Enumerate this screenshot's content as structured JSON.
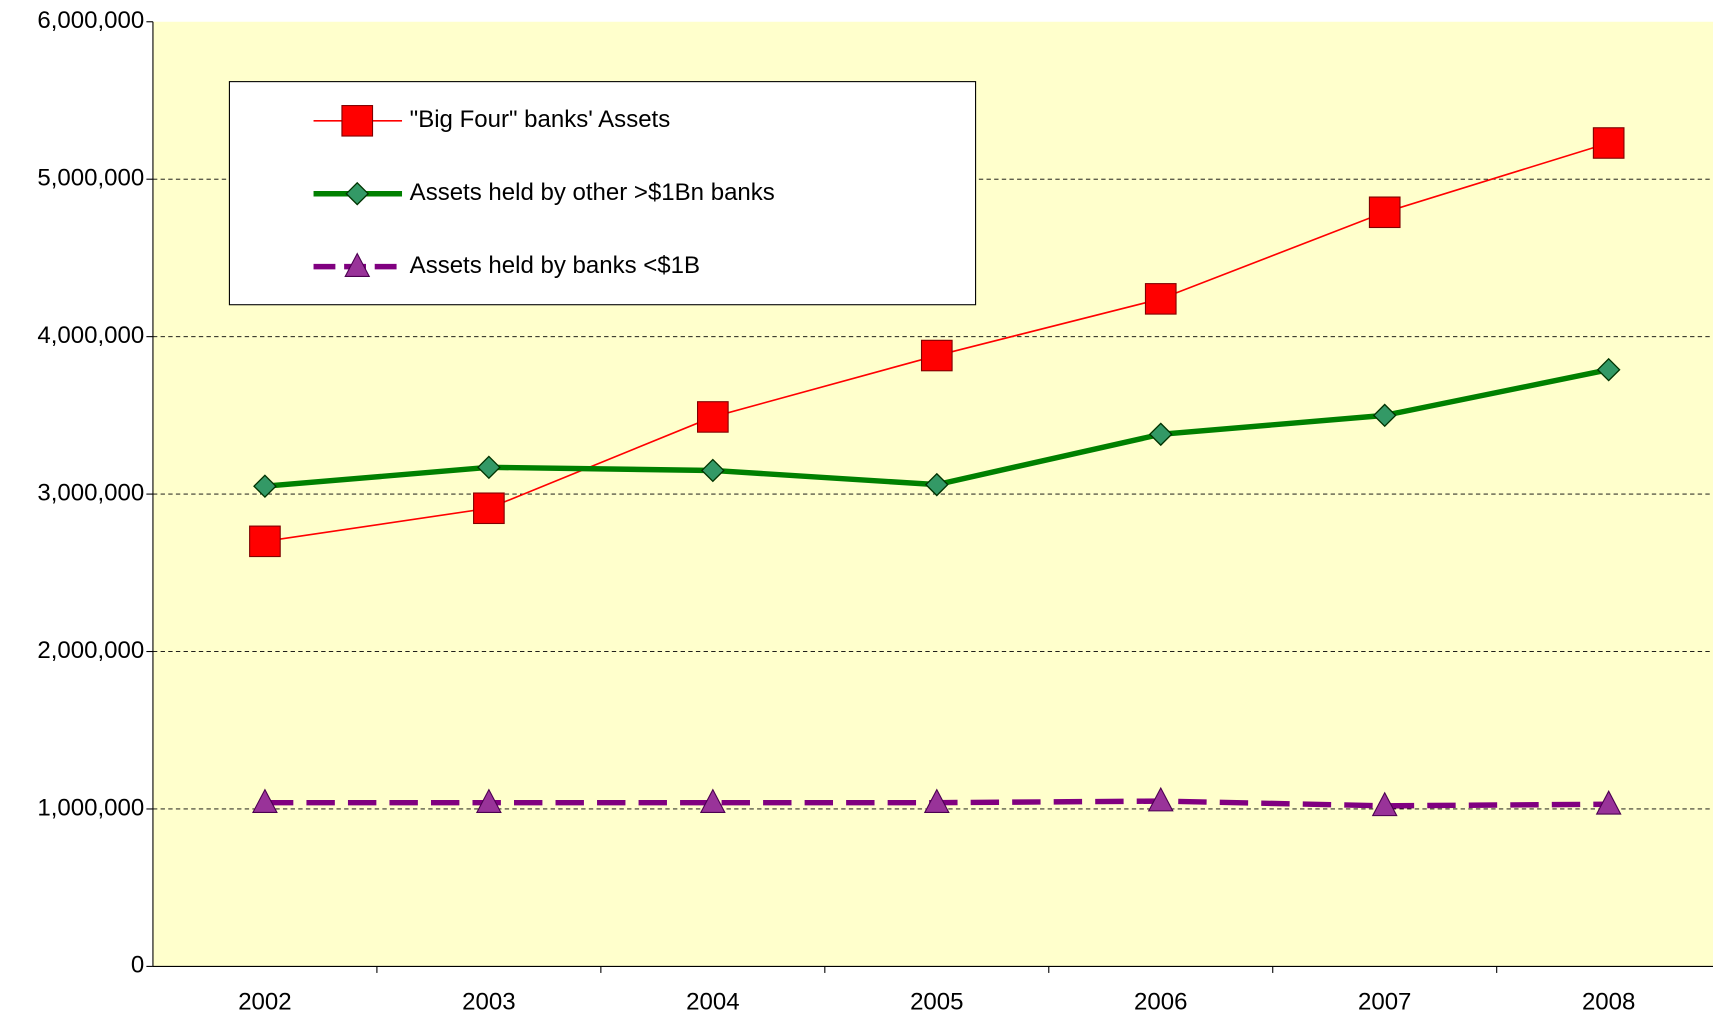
{
  "chart_data": {
    "type": "line",
    "categories": [
      "2002",
      "2003",
      "2004",
      "2005",
      "2006",
      "2007",
      "2008"
    ],
    "series": [
      {
        "name": "\"Big Four\" banks' Assets",
        "color": "#ff0000",
        "marker": "square",
        "values": [
          2700000,
          2910000,
          3490000,
          3880000,
          4240000,
          4790000,
          5230000
        ]
      },
      {
        "name": "Assets held by other >$1Bn banks",
        "color": "#008000",
        "marker": "diamond",
        "values": [
          3050000,
          3170000,
          3150000,
          3060000,
          3380000,
          3500000,
          3790000
        ]
      },
      {
        "name": "Assets held by banks <$1B",
        "color": "#800080",
        "marker": "triangle",
        "dashed": true,
        "values": [
          1040000,
          1040000,
          1040000,
          1040000,
          1050000,
          1020000,
          1030000
        ]
      }
    ],
    "ylim": [
      0,
      6000000
    ],
    "yticks": [
      0,
      {
        "value": 1000000,
        "label": "1,000,000"
      },
      {
        "value": 2000000,
        "label": "2,000,000"
      },
      {
        "value": 3000000,
        "label": "3,000,000"
      },
      {
        "value": 4000000,
        "label": "4,000,000"
      },
      {
        "value": 5000000,
        "label": "5,000,000"
      },
      {
        "value": 6000000,
        "label": "6,000,000"
      }
    ],
    "grid": true,
    "plot_background": "#ffffcc"
  }
}
